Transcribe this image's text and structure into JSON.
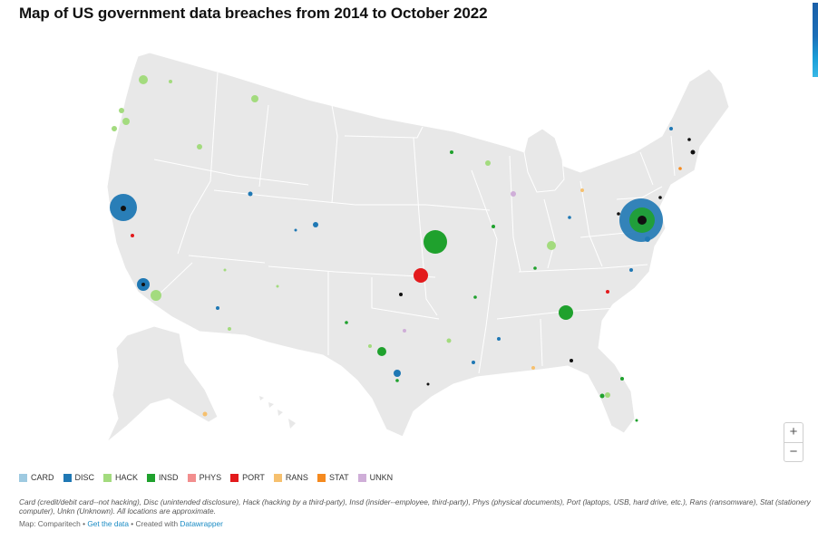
{
  "title": "Map of US government data breaches from 2014 to October 2022",
  "legend": [
    {
      "code": "CARD",
      "color": "#9ecae1"
    },
    {
      "code": "DISC",
      "color": "#1f78b4"
    },
    {
      "code": "HACK",
      "color": "#a3db7e"
    },
    {
      "code": "INSD",
      "color": "#1fa12d"
    },
    {
      "code": "PHYS",
      "color": "#f28e8e"
    },
    {
      "code": "PORT",
      "color": "#e31a1c"
    },
    {
      "code": "RANS",
      "color": "#f6c06e"
    },
    {
      "code": "STAT",
      "color": "#f58a1f"
    },
    {
      "code": "UNKN",
      "color": "#cfaed8"
    }
  ],
  "notes": "Card (credit/debit card--not hacking), Disc (unintended disclosure), Hack (hacking by a third-party), Insd (insider--employee, third-party), Phys (physical documents), Port (laptops, USB, hard drive, etc.), Rans (ransomware), Stat (stationery computer), Unkn (Unknown). All locations are approximate.",
  "footer": {
    "source_prefix": "Map: Comparitech •",
    "get_data_link": "Get the data",
    "created_with": "• Created with",
    "tool_link": "Datawrapper"
  },
  "zoom": {
    "in_label": "+",
    "out_label": "−"
  },
  "map": {
    "land_color": "#e8e8e8",
    "border_color": "#ffffff"
  }
}
